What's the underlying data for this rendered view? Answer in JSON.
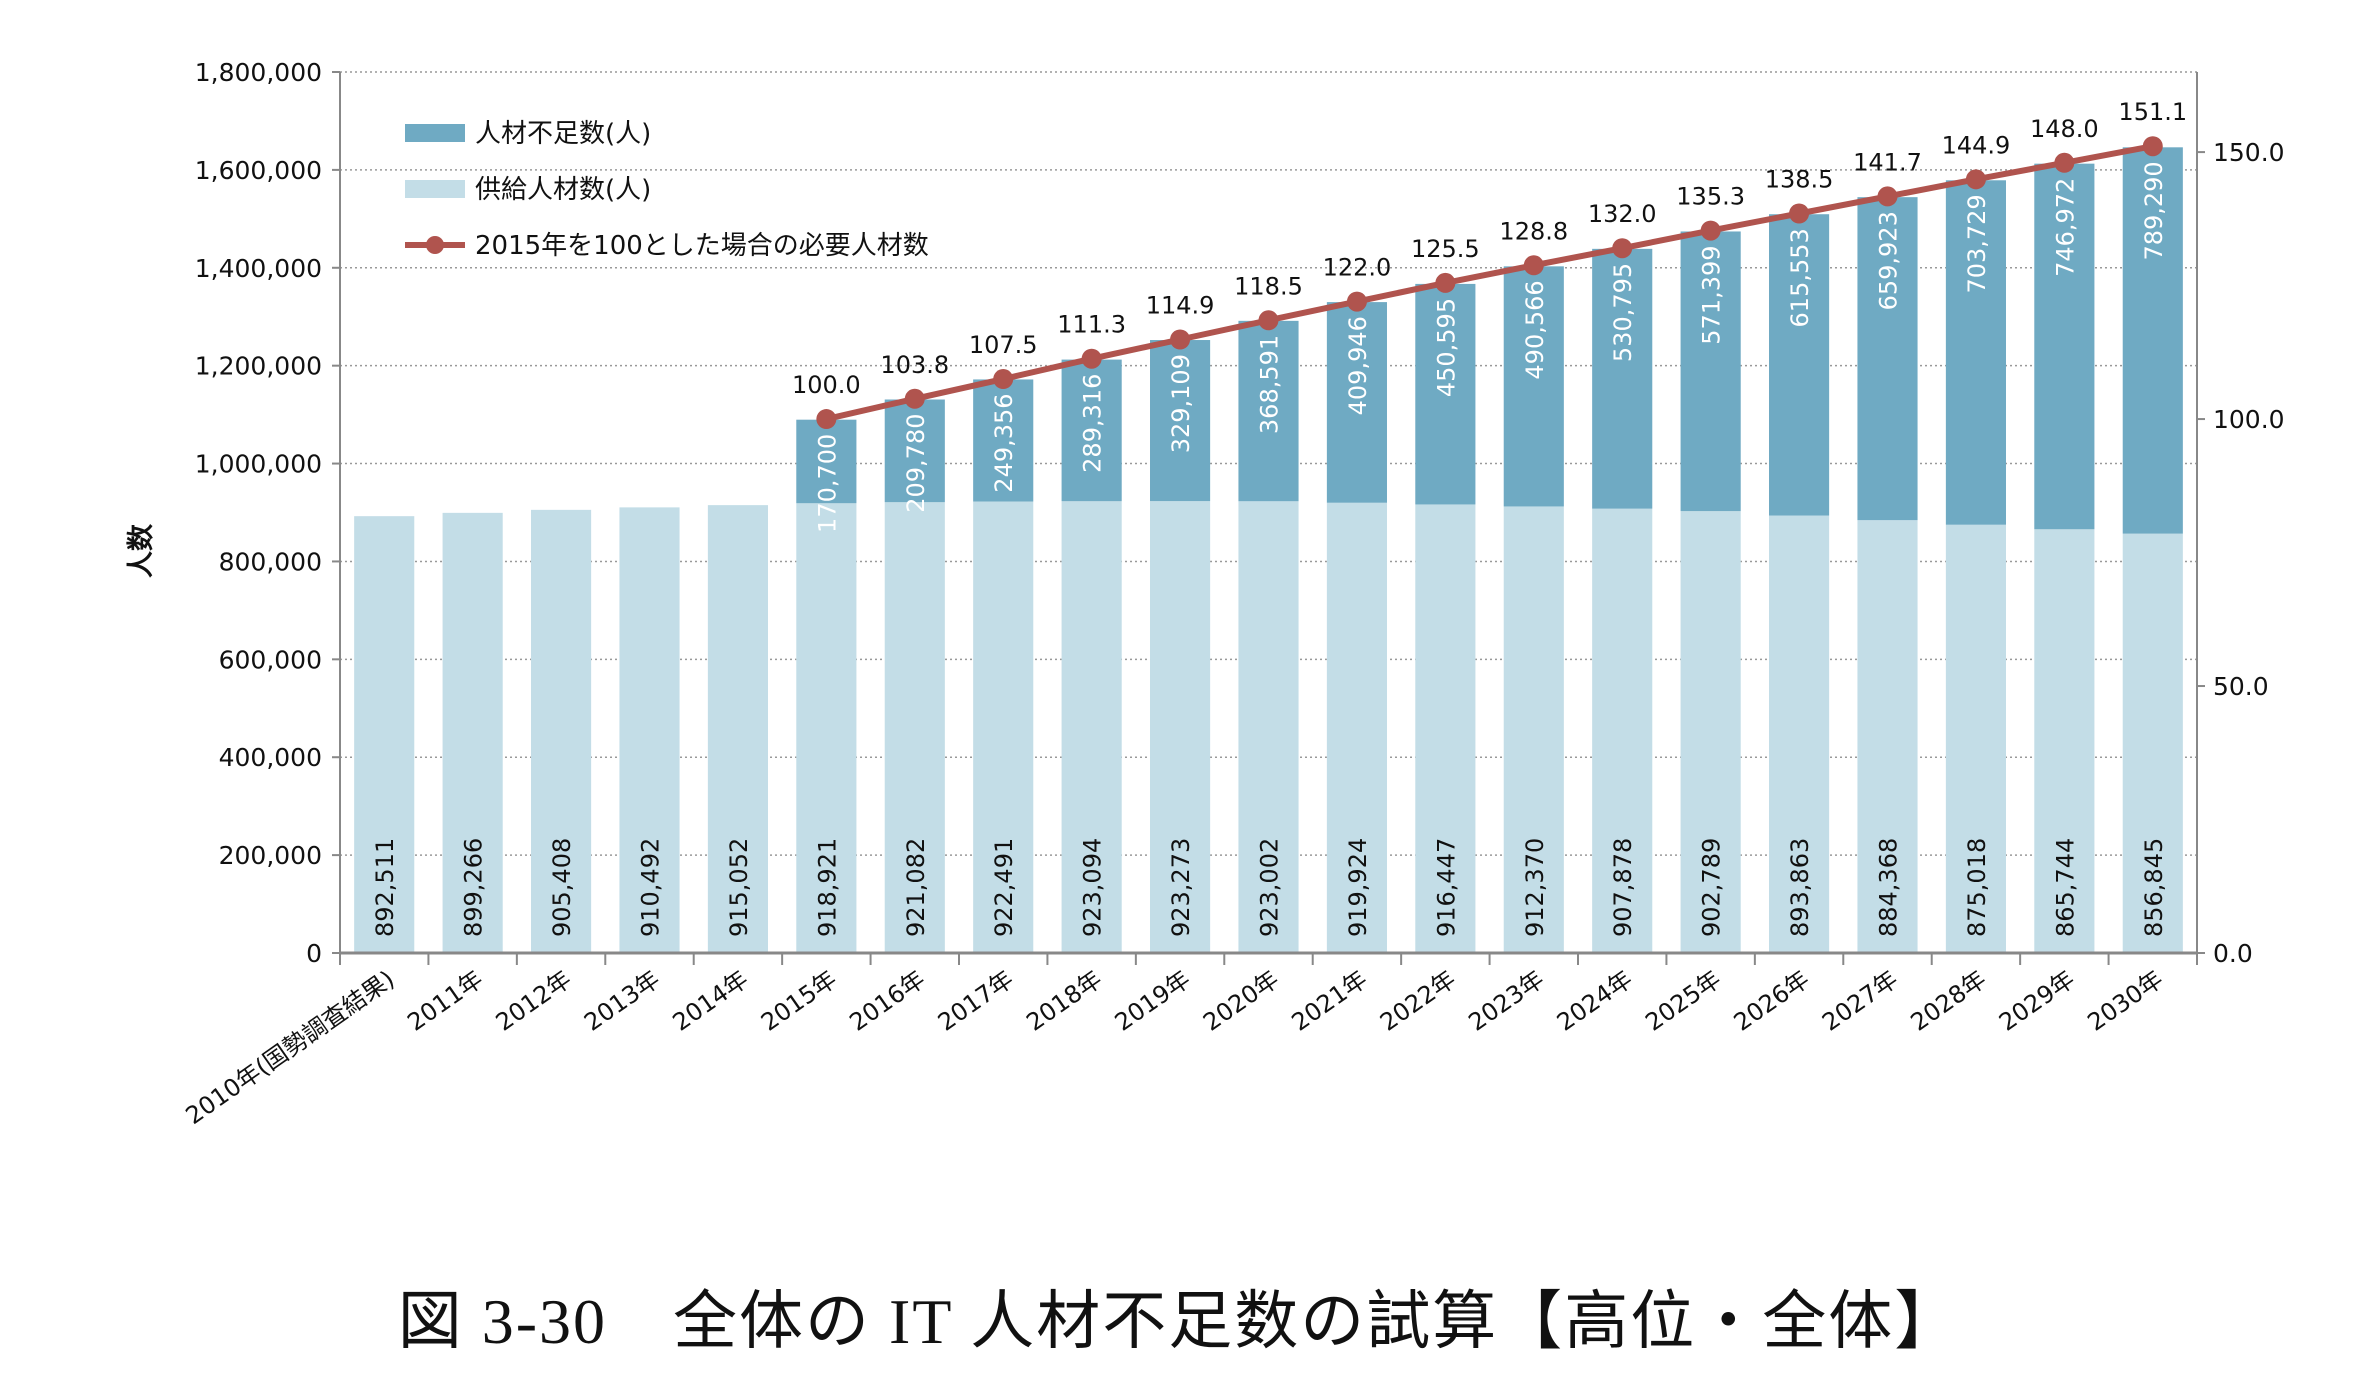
{
  "chart_data": {
    "type": "bar+line",
    "caption": "図 3-30　全体の IT 人材不足数の試算【高位・全体】",
    "ylabel": "人数",
    "ylim": [
      0,
      1800000
    ],
    "y_ticks": [
      "0",
      "200,000",
      "400,000",
      "600,000",
      "800,000",
      "1,000,000",
      "1,200,000",
      "1,400,000",
      "1,600,000",
      "1,800,000"
    ],
    "y2lim": [
      0,
      165
    ],
    "y2_ticks": [
      "0.0",
      "50.0",
      "100.0",
      "150.0"
    ],
    "grid": true,
    "legend_placement": "top-left",
    "categories": [
      "2010年(国勢調査結果)",
      "2011年",
      "2012年",
      "2013年",
      "2014年",
      "2015年",
      "2016年",
      "2017年",
      "2018年",
      "2019年",
      "2020年",
      "2021年",
      "2022年",
      "2023年",
      "2024年",
      "2025年",
      "2026年",
      "2027年",
      "2028年",
      "2029年",
      "2030年"
    ],
    "series": [
      {
        "name": "供給人材数(人)",
        "type": "bar-stacked",
        "color": "#c3dde7",
        "values": [
          892511,
          899266,
          905408,
          910492,
          915052,
          918921,
          921082,
          922491,
          923094,
          923273,
          923002,
          919924,
          916447,
          912370,
          907878,
          902789,
          893863,
          884368,
          875018,
          865744,
          856845
        ],
        "labels": [
          "892,511",
          "899,266",
          "905,408",
          "910,492",
          "915,052",
          "918,921",
          "921,082",
          "922,491",
          "923,094",
          "923,273",
          "923,002",
          "919,924",
          "916,447",
          "912,370",
          "907,878",
          "902,789",
          "893,863",
          "884,368",
          "875,018",
          "865,744",
          "856,845"
        ]
      },
      {
        "name": "人材不足数(人)",
        "type": "bar-stacked",
        "color": "#6faac3",
        "values": [
          null,
          null,
          null,
          null,
          null,
          170700,
          209780,
          249356,
          289316,
          329109,
          368591,
          409946,
          450595,
          490566,
          530795,
          571399,
          615553,
          659923,
          703729,
          746972,
          789290
        ],
        "labels": [
          "",
          "",
          "",
          "",
          "",
          "170,700",
          "209,780",
          "249,356",
          "289,316",
          "329,109",
          "368,591",
          "409,946",
          "450,595",
          "490,566",
          "530,795",
          "571,399",
          "615,553",
          "659,923",
          "703,729",
          "746,972",
          "789,290"
        ]
      },
      {
        "name": "2015年を100とした場合の必要人材数",
        "type": "line",
        "axis": "right",
        "color": "#b0544e",
        "values": [
          null,
          null,
          null,
          null,
          null,
          100.0,
          103.8,
          107.5,
          111.3,
          114.9,
          118.5,
          122.0,
          125.5,
          128.8,
          132.0,
          135.3,
          138.5,
          141.7,
          144.9,
          148.0,
          151.1
        ],
        "labels": [
          "",
          "",
          "",
          "",
          "",
          "100.0",
          "103.8",
          "107.5",
          "111.3",
          "114.9",
          "118.5",
          "122.0",
          "125.5",
          "128.8",
          "132.0",
          "135.3",
          "138.5",
          "141.7",
          "144.9",
          "148.0",
          "151.1"
        ]
      }
    ]
  }
}
